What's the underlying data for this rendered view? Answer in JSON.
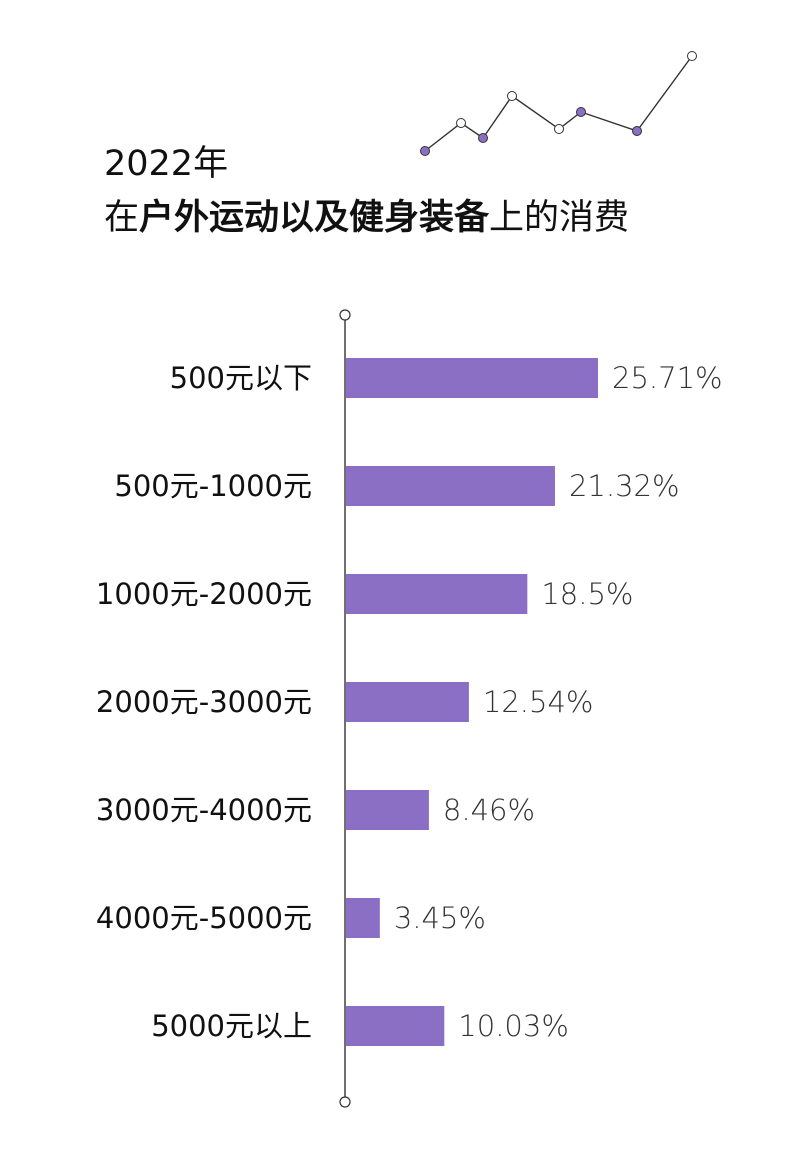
{
  "title": {
    "line1": "2022年",
    "line2_prefix": "在",
    "line2_bold": "户外运动以及健身装备",
    "line2_suffix": "上的消费"
  },
  "colors": {
    "bar": "#8a6fc4",
    "axis": "#333333",
    "deco_filled": "#8a6fc4",
    "deco_hollow": "#ffffff"
  },
  "chart_data": {
    "type": "bar",
    "orientation": "horizontal",
    "categories": [
      "500元以下",
      "500元-1000元",
      "1000元-2000元",
      "2000元-3000元",
      "3000元-4000元",
      "4000元-5000元",
      "5000元以上"
    ],
    "values": [
      25.71,
      21.32,
      18.5,
      12.54,
      8.46,
      3.45,
      10.03
    ],
    "value_labels": [
      "25.71%",
      "21.32%",
      "18.5%",
      "12.54%",
      "8.46%",
      "3.45%",
      "10.03%"
    ],
    "unit": "%",
    "grid": false,
    "legend": "none"
  }
}
